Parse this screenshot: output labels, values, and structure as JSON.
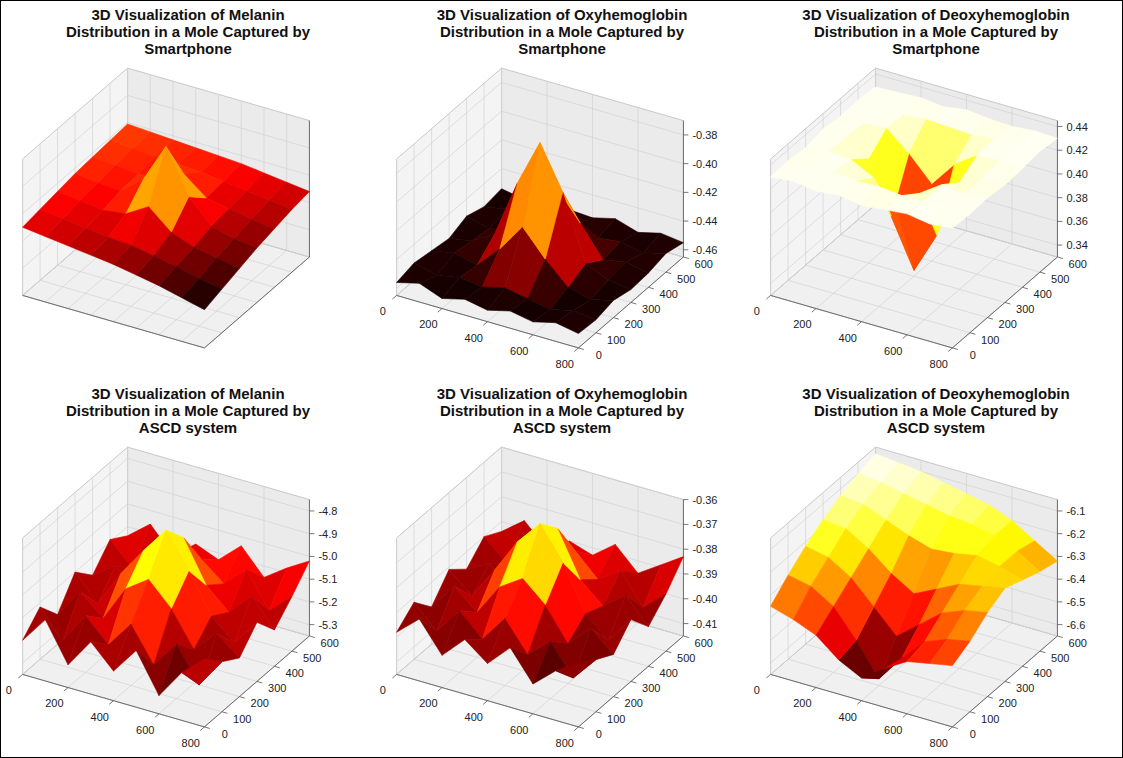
{
  "chart_data": [
    {
      "type": "surface",
      "title": "3D Visualization of Melanin Distribution in a Mole Captured by Smartphone",
      "color": "hot",
      "tick_labels": false,
      "x": [
        0,
        100,
        200,
        300,
        400,
        500,
        600,
        700,
        800
      ],
      "y": [
        0,
        100,
        200,
        300,
        400,
        500,
        600
      ],
      "xlim": [
        0,
        800
      ],
      "ylim": [
        0,
        600
      ],
      "zlim": [
        0,
        1
      ],
      "xticks": [
        0,
        100,
        200,
        300,
        400,
        500,
        600,
        700,
        800
      ],
      "yticks": [
        0,
        100,
        200,
        300,
        400,
        500,
        600
      ],
      "zticks": [
        0.2,
        0.4,
        0.6,
        0.8
      ],
      "z": [
        [
          0.5,
          0.48,
          0.46,
          0.44,
          0.42,
          0.39,
          0.36,
          0.32,
          0.28
        ],
        [
          0.52,
          0.5,
          0.48,
          0.46,
          0.45,
          0.42,
          0.39,
          0.35,
          0.32
        ],
        [
          0.54,
          0.52,
          0.5,
          0.52,
          0.62,
          0.48,
          0.42,
          0.39,
          0.36
        ],
        [
          0.56,
          0.54,
          0.53,
          0.66,
          0.95,
          0.63,
          0.46,
          0.42,
          0.4
        ],
        [
          0.57,
          0.56,
          0.54,
          0.54,
          0.64,
          0.51,
          0.48,
          0.45,
          0.43
        ],
        [
          0.58,
          0.57,
          0.56,
          0.55,
          0.54,
          0.52,
          0.5,
          0.48,
          0.46
        ],
        [
          0.59,
          0.58,
          0.57,
          0.56,
          0.55,
          0.54,
          0.52,
          0.5,
          0.48
        ]
      ]
    },
    {
      "type": "surface",
      "title": "3D Visualization of Oxyhemoglobin Distribution in a Mole Captured by Smartphone",
      "color": "hot",
      "x": [
        0,
        100,
        200,
        300,
        400,
        500,
        600,
        700,
        800
      ],
      "y": [
        0,
        100,
        200,
        300,
        400,
        500,
        600
      ],
      "xlim": [
        0,
        800
      ],
      "ylim": [
        0,
        600
      ],
      "zlim": [
        -0.465,
        -0.37
      ],
      "xticks": [
        0,
        200,
        400,
        600,
        800
      ],
      "yticks": [
        0,
        100,
        200,
        300,
        400,
        500,
        600
      ],
      "zticks": [
        -0.46,
        -0.44,
        -0.42,
        {
          "value": -0.4,
          "label": "-0.40"
        },
        -0.38
      ],
      "z": [
        [
          -0.456,
          -0.452,
          -0.458,
          -0.454,
          -0.457,
          -0.453,
          -0.456,
          -0.452,
          -0.455
        ],
        [
          -0.453,
          -0.457,
          -0.454,
          -0.456,
          -0.452,
          -0.455,
          -0.458,
          -0.454,
          -0.456
        ],
        [
          -0.455,
          -0.452,
          -0.456,
          -0.44,
          -0.42,
          -0.438,
          -0.453,
          -0.457,
          -0.453
        ],
        [
          -0.457,
          -0.454,
          -0.445,
          -0.405,
          -0.372,
          -0.402,
          -0.447,
          -0.454,
          -0.456
        ],
        [
          -0.452,
          -0.456,
          -0.453,
          -0.436,
          -0.415,
          -0.434,
          -0.455,
          -0.452,
          -0.455
        ],
        [
          -0.456,
          -0.453,
          -0.457,
          -0.454,
          -0.45,
          -0.455,
          -0.453,
          -0.456,
          -0.452
        ],
        [
          -0.454,
          -0.457,
          -0.453,
          -0.455,
          -0.456,
          -0.452,
          -0.457,
          -0.453,
          -0.455
        ]
      ]
    },
    {
      "type": "surface",
      "title": "3D Visualization of Deoxyhemoglobin Distribution in a Mole Captured by Smartphone",
      "color": "hot",
      "x": [
        0,
        100,
        200,
        300,
        400,
        500,
        600,
        700,
        800
      ],
      "y": [
        0,
        100,
        200,
        300,
        400,
        500,
        600
      ],
      "xlim": [
        0,
        800
      ],
      "ylim": [
        0,
        600
      ],
      "zlim": [
        0.33,
        0.445
      ],
      "xticks": [
        0,
        200,
        400,
        600,
        800
      ],
      "yticks": [
        0,
        100,
        200,
        300,
        400,
        500,
        600
      ],
      "zticks": [
        0.34,
        0.36,
        0.38,
        {
          "value": 0.4,
          "label": "0.40"
        },
        0.42,
        0.44
      ],
      "z": [
        [
          0.43,
          0.432,
          0.429,
          0.431,
          0.428,
          0.43,
          0.432,
          0.429,
          0.431
        ],
        [
          0.431,
          0.429,
          0.432,
          0.43,
          0.431,
          0.429,
          0.43,
          0.432,
          0.43
        ],
        [
          0.429,
          0.431,
          0.43,
          0.42,
          0.4,
          0.418,
          0.431,
          0.429,
          0.431
        ],
        [
          0.432,
          0.43,
          0.418,
          0.375,
          0.335,
          0.37,
          0.42,
          0.43,
          0.429
        ],
        [
          0.43,
          0.429,
          0.431,
          0.415,
          0.395,
          0.417,
          0.43,
          0.431,
          0.43
        ],
        [
          0.431,
          0.432,
          0.429,
          0.431,
          0.43,
          0.429,
          0.431,
          0.43,
          0.432
        ],
        [
          0.429,
          0.43,
          0.431,
          0.429,
          0.432,
          0.43,
          0.429,
          0.431,
          0.43
        ]
      ]
    },
    {
      "type": "surface",
      "title": "3D Visualization of Melanin Distribution in a Mole Captured by ASCD system",
      "color": "hot",
      "x": [
        0,
        100,
        200,
        300,
        400,
        500,
        600,
        700,
        800
      ],
      "y": [
        0,
        100,
        200,
        300,
        400,
        500,
        600
      ],
      "xlim": [
        0,
        800
      ],
      "ylim": [
        0,
        600
      ],
      "zlim": [
        -5.35,
        -4.75
      ],
      "xticks": [
        0,
        200,
        400,
        600,
        800
      ],
      "yticks": [
        0,
        100,
        200,
        300,
        400,
        500,
        600
      ],
      "zticks": [
        -5.3,
        -5.2,
        -5.1,
        {
          "value": -5,
          "label": "-5.0"
        },
        -4.9,
        -4.8
      ],
      "z": [
        [
          -5.2,
          -5.08,
          -5.25,
          -5.12,
          -5.22,
          -5.1,
          -5.27,
          -5.14,
          -5.05
        ],
        [
          -5.12,
          -5.24,
          -5.1,
          -5.2,
          -5.08,
          -5.23,
          -5.11,
          -5.26,
          -5.13
        ],
        [
          -5.22,
          -5.09,
          -5.18,
          -5.02,
          -4.95,
          -5.05,
          -5.2,
          -5.1,
          -5.18
        ],
        [
          -5.1,
          -5.21,
          -5.05,
          -4.92,
          -4.8,
          -4.95,
          -5.12,
          -5.21,
          -5.09
        ],
        [
          -5.18,
          -5.11,
          -5.2,
          -5.0,
          -4.9,
          -5.08,
          -5.17,
          -5.07,
          -5.19
        ],
        [
          -5.09,
          -5.19,
          -5.08,
          -5.16,
          -5.06,
          -5.14,
          -5.05,
          -5.2,
          -5.11
        ],
        [
          -5.14,
          -5.06,
          -5.17,
          -5.09,
          -5.13,
          -5.04,
          -5.15,
          -5.08,
          -5.02
        ]
      ]
    },
    {
      "type": "surface",
      "title": "3D Visualization of Oxyhemoglobin Distribution in a Mole Captured by ASCD system",
      "color": "hot",
      "x": [
        0,
        100,
        200,
        300,
        400,
        500,
        600,
        700,
        800
      ],
      "y": [
        0,
        100,
        200,
        300,
        400,
        500,
        600
      ],
      "xlim": [
        0,
        800
      ],
      "ylim": [
        0,
        600
      ],
      "zlim": [
        -0.415,
        -0.36
      ],
      "xticks": [
        0,
        200,
        400,
        600,
        800
      ],
      "yticks": [
        0,
        100,
        200,
        300,
        400,
        500,
        600
      ],
      "zticks": [
        -0.41,
        {
          "value": -0.4,
          "label": "-0.40"
        },
        -0.39,
        -0.38,
        -0.37,
        -0.36
      ],
      "z": [
        [
          -0.398,
          -0.39,
          -0.402,
          -0.393,
          -0.4,
          -0.391,
          -0.403,
          -0.395,
          -0.389
        ],
        [
          -0.392,
          -0.401,
          -0.39,
          -0.399,
          -0.388,
          -0.4,
          -0.392,
          -0.404,
          -0.394
        ],
        [
          -0.4,
          -0.389,
          -0.397,
          -0.384,
          -0.378,
          -0.386,
          -0.399,
          -0.39,
          -0.398
        ],
        [
          -0.391,
          -0.399,
          -0.386,
          -0.372,
          -0.362,
          -0.375,
          -0.393,
          -0.401,
          -0.39
        ],
        [
          -0.397,
          -0.392,
          -0.4,
          -0.382,
          -0.37,
          -0.388,
          -0.396,
          -0.389,
          -0.399
        ],
        [
          -0.39,
          -0.398,
          -0.389,
          -0.396,
          -0.385,
          -0.394,
          -0.388,
          -0.4,
          -0.392
        ],
        [
          -0.394,
          -0.387,
          -0.396,
          -0.39,
          -0.393,
          -0.386,
          -0.395,
          -0.389,
          -0.383
        ]
      ]
    },
    {
      "type": "surface",
      "title": "3D Visualization of Deoxyhemoglobin Distribution in a Mole Captured by ASCD system",
      "color": "hot",
      "x": [
        0,
        100,
        200,
        300,
        400,
        500,
        600,
        700,
        800
      ],
      "y": [
        0,
        100,
        200,
        300,
        400,
        500,
        600
      ],
      "xlim": [
        0,
        800
      ],
      "ylim": [
        0,
        600
      ],
      "zlim": [
        -6.65,
        -6.05
      ],
      "xticks": [
        0,
        200,
        400,
        600,
        800
      ],
      "yticks": [
        0,
        100,
        200,
        300,
        400,
        500,
        600
      ],
      "zticks": [
        -6.6,
        -6.5,
        -6.4,
        -6.3,
        -6.2,
        -6.1
      ],
      "z": [
        [
          -6.35,
          -6.38,
          -6.42,
          -6.5,
          -6.55,
          -6.48,
          -6.42,
          -6.4,
          -6.38
        ],
        [
          -6.28,
          -6.3,
          -6.36,
          -6.48,
          -6.62,
          -6.5,
          -6.4,
          -6.36,
          -6.34
        ],
        [
          -6.22,
          -6.24,
          -6.3,
          -6.4,
          -6.5,
          -6.42,
          -6.34,
          -6.3,
          -6.28
        ],
        [
          -6.17,
          -6.18,
          -6.24,
          -6.32,
          -6.38,
          -6.33,
          -6.28,
          -6.26,
          -6.24
        ],
        [
          -6.13,
          -6.14,
          -6.18,
          -6.22,
          -6.25,
          -6.24,
          -6.22,
          -6.24,
          -6.27
        ],
        [
          -6.1,
          -6.11,
          -6.13,
          -6.15,
          -6.17,
          -6.18,
          -6.2,
          -6.24,
          -6.3
        ],
        [
          -6.08,
          -6.09,
          -6.1,
          -6.12,
          -6.14,
          -6.16,
          -6.2,
          -6.26,
          -6.32
        ]
      ]
    }
  ]
}
